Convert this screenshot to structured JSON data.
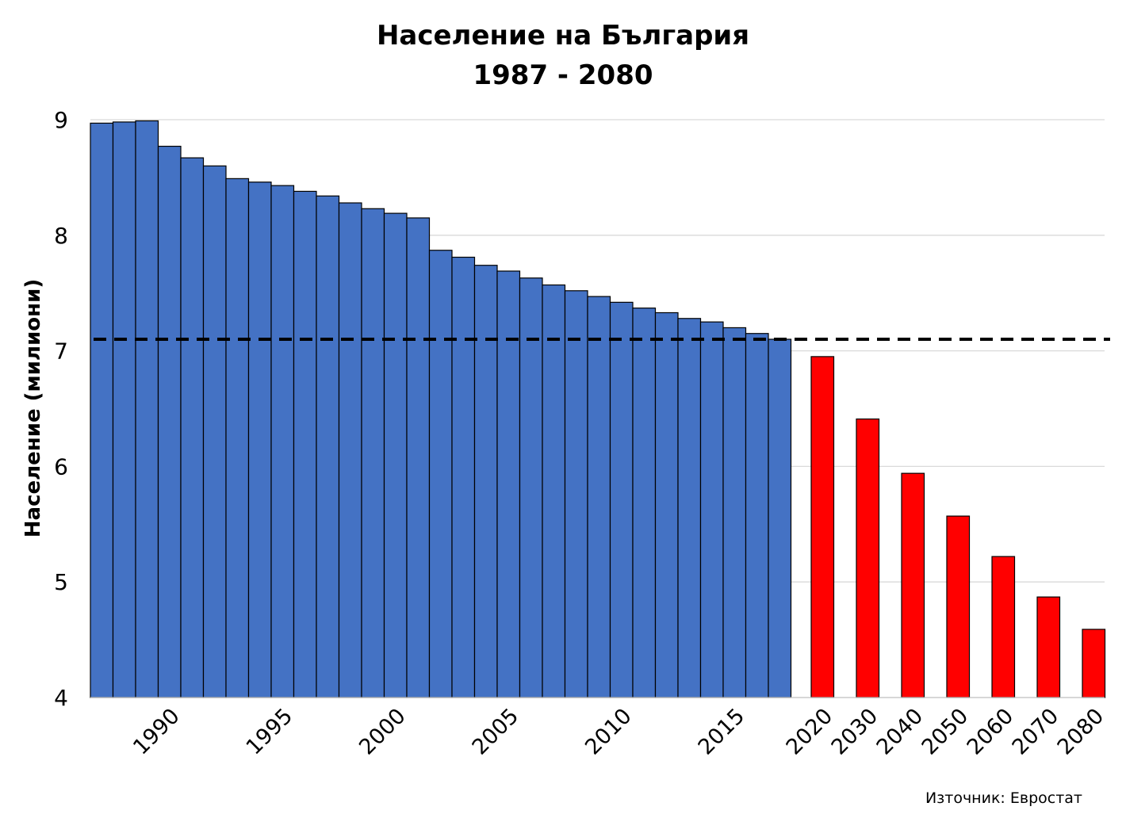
{
  "chart_data": {
    "type": "bar",
    "title": [
      "Население  на  България",
      "1987  -  2080"
    ],
    "ylabel": "Население (милиони)",
    "xlabel": "",
    "ylim": [
      4,
      9
    ],
    "yticks": [
      "4",
      "5",
      "6",
      "7",
      "8",
      "9"
    ],
    "grid": true,
    "legend": "none",
    "source": "Източник: Евростат",
    "reference_line": {
      "value": 7.1,
      "style": "dashed",
      "color": "#000000"
    },
    "series": [
      {
        "kind": "historical",
        "color": "#4472C4",
        "x": [
          1987,
          1988,
          1989,
          1990,
          1991,
          1992,
          1993,
          1994,
          1995,
          1996,
          1997,
          1998,
          1999,
          2000,
          2001,
          2002,
          2003,
          2004,
          2005,
          2006,
          2007,
          2008,
          2009,
          2010,
          2011,
          2012,
          2013,
          2014,
          2015,
          2016,
          2017
        ],
        "values": [
          8.97,
          8.98,
          8.99,
          8.77,
          8.67,
          8.6,
          8.49,
          8.46,
          8.43,
          8.38,
          8.34,
          8.28,
          8.23,
          8.19,
          8.15,
          7.87,
          7.81,
          7.74,
          7.69,
          7.63,
          7.57,
          7.52,
          7.47,
          7.42,
          7.37,
          7.33,
          7.28,
          7.25,
          7.2,
          7.15,
          7.1
        ]
      },
      {
        "kind": "projection",
        "color": "#FF0000",
        "x": [
          2020,
          2030,
          2040,
          2050,
          2060,
          2070,
          2080
        ],
        "values": [
          6.95,
          6.41,
          5.94,
          5.57,
          5.22,
          4.87,
          4.59
        ]
      }
    ],
    "xtick_labels": {
      "historical": [
        "1990",
        "1995",
        "2000",
        "2005",
        "2010",
        "2015"
      ],
      "projection": [
        "2020",
        "2030",
        "2040",
        "2050",
        "2060",
        "2070",
        "2080"
      ]
    }
  }
}
